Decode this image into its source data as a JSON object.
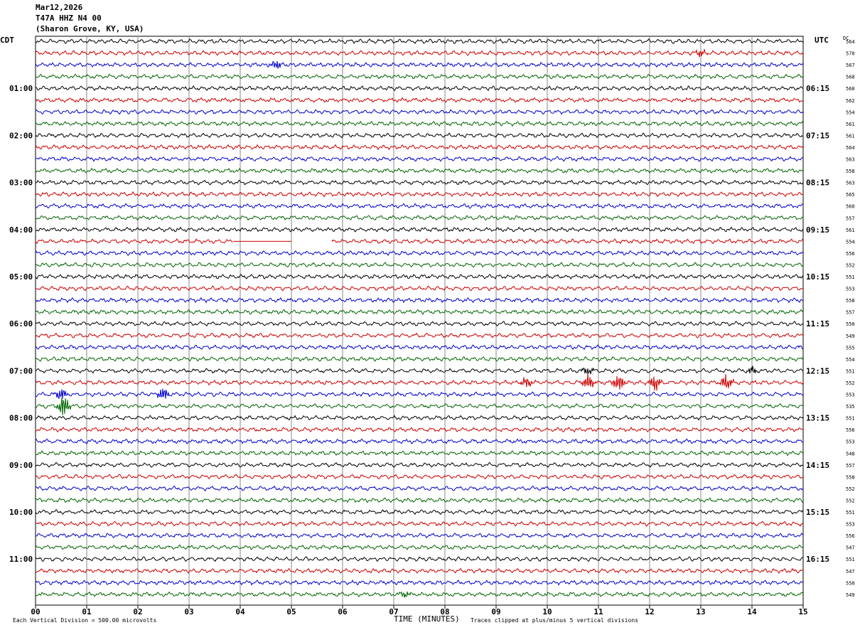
{
  "header": {
    "date": "Mar12,2026",
    "station": "T47A HHZ N4 00",
    "location": "(Sharon Grove, KY, USA)"
  },
  "left_tz": "CDT",
  "right_tz": "UTC",
  "dc_label": "DC",
  "footer": {
    "scale_note": "Each Vertical Division =  500.00 microvolts",
    "xlabel": "TIME (MINUTES)",
    "clip_note": "Traces clipped at plus/minus 5 vertical divisions"
  },
  "chart_data": {
    "type": "line",
    "title": "T47A HHZ N4 00",
    "xlabel": "TIME (MINUTES)",
    "xlim": [
      0,
      15
    ],
    "x_ticks": [
      "00",
      "01",
      "02",
      "03",
      "04",
      "05",
      "06",
      "07",
      "08",
      "09",
      "10",
      "11",
      "12",
      "13",
      "14",
      "15"
    ],
    "trace_colors": [
      "#000000",
      "#cc0000",
      "#0000cc",
      "#006600"
    ],
    "traces_per_hour": 4,
    "n_traces": 48,
    "left_hour_labels": [
      "01:00",
      "02:00",
      "03:00",
      "04:00",
      "05:00",
      "06:00",
      "07:00",
      "08:00",
      "09:00",
      "10:00",
      "11:00"
    ],
    "right_hour_labels": [
      "06:15",
      "07:15",
      "08:15",
      "09:15",
      "10:15",
      "11:15",
      "12:15",
      "13:15",
      "14:15",
      "15:15",
      "16:15"
    ],
    "dc_offsets": [
      564,
      570,
      567,
      568,
      560,
      562,
      554,
      561,
      561,
      564,
      563,
      558,
      563,
      565,
      560,
      557,
      561,
      554,
      556,
      552,
      551,
      553,
      558,
      557,
      550,
      549,
      555,
      554,
      551,
      552,
      553,
      535,
      551,
      556,
      553,
      548,
      557,
      558,
      552,
      552,
      551,
      553,
      556,
      547,
      551,
      547,
      550,
      549
    ],
    "data_gaps": [
      {
        "trace": 17,
        "x_start": 3.85,
        "x_end": 5.0,
        "flat": true
      },
      {
        "trace": 17,
        "x_start": 5.0,
        "x_end": 5.78,
        "flat": false
      }
    ],
    "events": [
      {
        "trace": 1,
        "x": 13.0,
        "amp": 1.2
      },
      {
        "trace": 2,
        "x": 4.7,
        "amp": 1.8
      },
      {
        "trace": 28,
        "x": 10.8,
        "amp": 1.5
      },
      {
        "trace": 28,
        "x": 14.0,
        "amp": 1.2
      },
      {
        "trace": 29,
        "x": 9.6,
        "amp": 2.0
      },
      {
        "trace": 29,
        "x": 10.8,
        "amp": 2.6
      },
      {
        "trace": 29,
        "x": 11.4,
        "amp": 3.2
      },
      {
        "trace": 29,
        "x": 12.1,
        "amp": 3.0
      },
      {
        "trace": 29,
        "x": 13.5,
        "amp": 3.2
      },
      {
        "trace": 30,
        "x": 0.5,
        "amp": 2.0
      },
      {
        "trace": 30,
        "x": 2.5,
        "amp": 2.2
      },
      {
        "trace": 31,
        "x": 0.55,
        "amp": 4.0
      },
      {
        "trace": 47,
        "x": 7.2,
        "amp": 1.0
      }
    ]
  }
}
